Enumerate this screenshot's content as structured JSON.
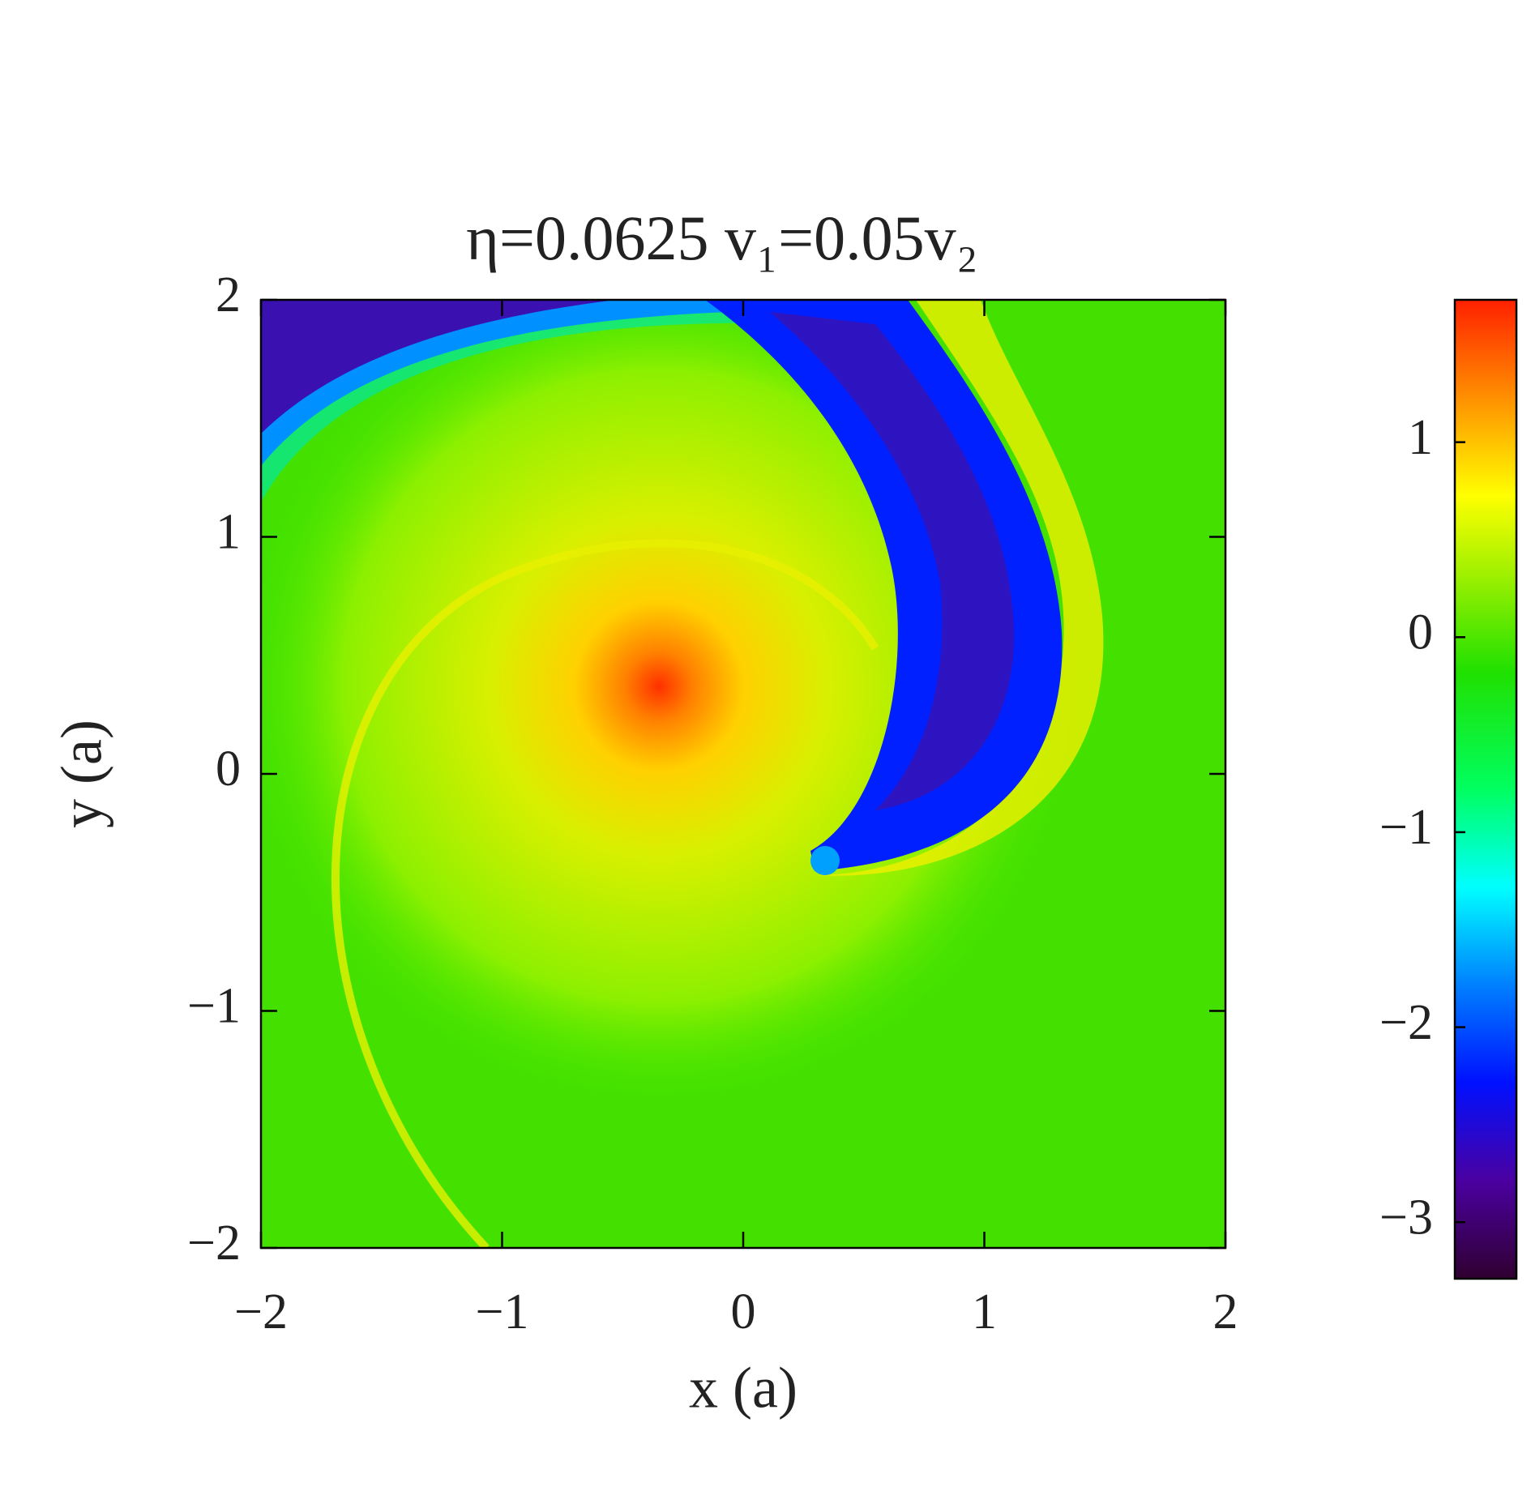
{
  "chart_data": {
    "type": "heatmap",
    "title": "η=0.0625  v₁=0.05v₂",
    "xlabel": "x (a)",
    "ylabel": "y (a)",
    "xlim": [
      -2,
      2
    ],
    "ylim": [
      -2,
      2
    ],
    "xticks": [
      {
        "value": -2,
        "label": "−2"
      },
      {
        "value": -1,
        "label": "−1"
      },
      0,
      1,
      2
    ],
    "yticks": [
      {
        "value": -2,
        "label": "−2"
      },
      {
        "value": -1,
        "label": "−1"
      },
      0,
      1,
      2
    ],
    "colorbar": {
      "clim": [
        -3.29,
        1.73
      ],
      "ticks": [
        {
          "value": -3,
          "label": "−3"
        },
        {
          "value": -2,
          "label": "−2"
        },
        {
          "value": -1,
          "label": "−1"
        },
        0,
        1
      ]
    }
  }
}
